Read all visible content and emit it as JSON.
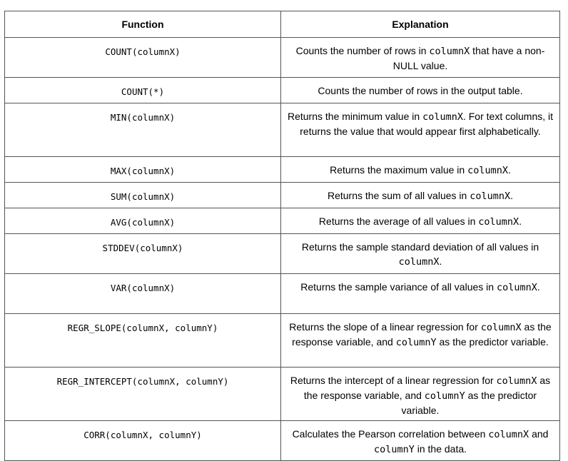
{
  "table": {
    "headers": [
      "Function",
      "Explanation"
    ],
    "rows": [
      {
        "function": "COUNT(columnX)",
        "explanation": [
          {
            "t": "Counts the number of rows in "
          },
          {
            "c": "columnX"
          },
          {
            "t": "  that have a non-NULL value."
          }
        ]
      },
      {
        "function": "COUNT(*)",
        "explanation": [
          {
            "t": "Counts the number of rows in the output table."
          }
        ]
      },
      {
        "function": "MIN(columnX)",
        "explanation": [
          {
            "t": "Returns the minimum value in "
          },
          {
            "c": "columnX"
          },
          {
            "t": ". For text columns, it returns the value that would appear first alphabetically."
          }
        ]
      },
      {
        "function": "MAX(columnX)",
        "explanation": [
          {
            "t": "Returns the maximum value in "
          },
          {
            "c": "columnX"
          },
          {
            "t": "."
          }
        ]
      },
      {
        "function": "SUM(columnX)",
        "explanation": [
          {
            "t": "Returns the sum of all values in "
          },
          {
            "c": "columnX"
          },
          {
            "t": "."
          }
        ]
      },
      {
        "function": "AVG(columnX)",
        "explanation": [
          {
            "t": "Returns the average of all values in "
          },
          {
            "c": "columnX"
          },
          {
            "t": "."
          }
        ]
      },
      {
        "function": "STDDEV(columnX)",
        "explanation": [
          {
            "t": "Returns the sample standard deviation of all values in "
          },
          {
            "c": "columnX"
          },
          {
            "t": "."
          }
        ]
      },
      {
        "function": "VAR(columnX)",
        "explanation": [
          {
            "t": "Returns the sample variance of all values in "
          },
          {
            "c": "columnX"
          },
          {
            "t": "."
          }
        ]
      },
      {
        "function": "REGR_SLOPE(columnX, columnY)",
        "explanation": [
          {
            "t": "Returns the slope of a linear regression for "
          },
          {
            "c": "columnX"
          },
          {
            "t": " as the response variable, and "
          },
          {
            "c": "columnY"
          },
          {
            "t": " as the predictor variable."
          }
        ]
      },
      {
        "function": "REGR_INTERCEPT(columnX, columnY)",
        "explanation": [
          {
            "t": "Returns the intercept of a linear regression for "
          },
          {
            "c": "columnX"
          },
          {
            "t": " as the response variable, and "
          },
          {
            "c": "columnY"
          },
          {
            "t": " as the predictor variable."
          }
        ]
      },
      {
        "function": "CORR(columnX, columnY)",
        "explanation": [
          {
            "t": "Calculates the Pearson correlation between "
          },
          {
            "c": "columnX"
          },
          {
            "t": " and "
          },
          {
            "c": "columnY"
          },
          {
            "t": " in the data."
          }
        ]
      }
    ]
  }
}
